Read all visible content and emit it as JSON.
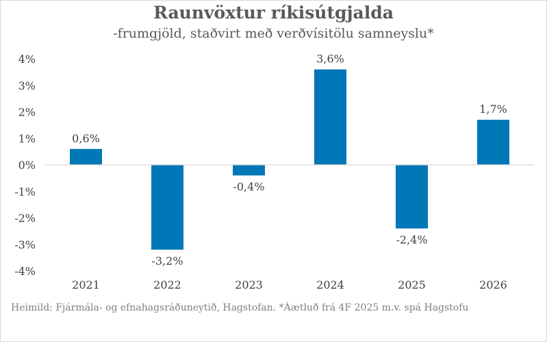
{
  "chart_data": {
    "type": "bar",
    "title": "Raunvöxtur ríkisútgjalda",
    "subtitle": "-frumgjöld,  staðvirt með verðvísitölu samneyslu*",
    "categories": [
      "2021",
      "2022",
      "2023",
      "2024",
      "2025",
      "2026"
    ],
    "values": [
      0.6,
      -3.2,
      -0.4,
      3.6,
      -2.4,
      1.7
    ],
    "data_labels": [
      "0,6%",
      "-3,2%",
      "-0,4%",
      "3,6%",
      "-2,4%",
      "1,7%"
    ],
    "yticks": [
      4,
      3,
      2,
      1,
      0,
      -1,
      -2,
      -3,
      -4
    ],
    "ytick_labels": [
      "4%",
      "3%",
      "2%",
      "1%",
      "0%",
      "-1%",
      "-2%",
      "-3%",
      "-4%"
    ],
    "ylim": [
      -4,
      4
    ],
    "xlabel": "",
    "ylabel": "",
    "grid": false,
    "legend": "none",
    "bar_color": "#0077b6",
    "axis_color": "#d9d9d9"
  },
  "source_text": "Heimild: Fjármála- og efnahagsráðuneytið, Hagstofan. *Áætluð frá 4F 2025 m.v. spá Hagstofu"
}
